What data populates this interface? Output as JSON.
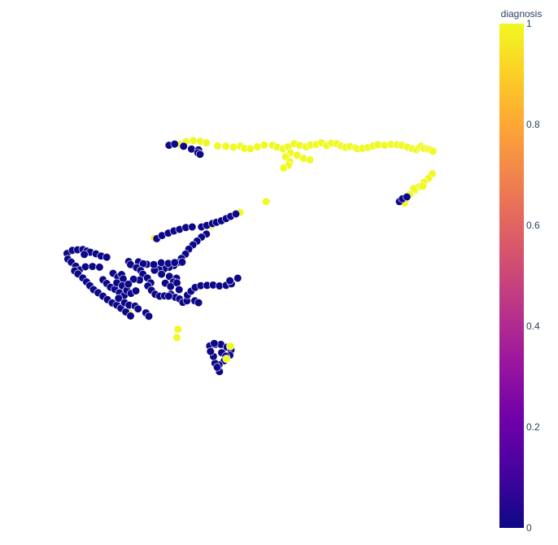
{
  "chart_data": {
    "type": "scatter",
    "title": "",
    "xlabel": "",
    "ylabel": "",
    "axes_visible": false,
    "grid": false,
    "xlim": [
      0,
      100
    ],
    "ylim": [
      0,
      100
    ],
    "color_by": "diagnosis",
    "colorbar": {
      "title": "diagnosis",
      "range": [
        0,
        1
      ],
      "tick_labels": [
        "0",
        "0.2",
        "0.4",
        "0.6",
        "0.8",
        "1"
      ],
      "tick_values": [
        0,
        0.2,
        0.4,
        0.6,
        0.8,
        1
      ],
      "colorscale": [
        "#0d0887",
        "#46039f",
        "#7201a8",
        "#9c179e",
        "#bd3786",
        "#d8576b",
        "#ed7953",
        "#fb9f3a",
        "#fdca26",
        "#f0f921"
      ]
    },
    "point_color_0": "#0d0887",
    "point_color_1": "#f0f921",
    "marker_outline": "#ffffff",
    "clusters": [
      {
        "diagnosis": 1,
        "points": [
          [
            31.4,
            87.5
          ],
          [
            33.1,
            88.4
          ],
          [
            35.0,
            88.7
          ],
          [
            36.9,
            88.5
          ],
          [
            38.5,
            88.0
          ],
          [
            41.5,
            87.0
          ],
          [
            43.7,
            86.9
          ],
          [
            45.8,
            86.6
          ],
          [
            47.6,
            86.9
          ],
          [
            48.7,
            86.2
          ],
          [
            50.3,
            86.1
          ],
          [
            52.2,
            86.7
          ],
          [
            54.0,
            87.3
          ],
          [
            56.2,
            87.2
          ],
          [
            57.5,
            86.6
          ],
          [
            59.0,
            86.1
          ],
          [
            60.3,
            86.7
          ],
          [
            62.0,
            87.7
          ],
          [
            63.5,
            87.2
          ],
          [
            65.2,
            86.7
          ],
          [
            66.4,
            87.3
          ],
          [
            67.9,
            87.5
          ],
          [
            69.3,
            88.0
          ],
          [
            70.7,
            87.1
          ],
          [
            72.0,
            87.9
          ],
          [
            73.4,
            87.7
          ],
          [
            74.6,
            87.0
          ],
          [
            75.8,
            86.6
          ],
          [
            77.0,
            86.8
          ],
          [
            78.4,
            86.4
          ],
          [
            79.0,
            86.1
          ],
          [
            80.3,
            86.2
          ],
          [
            81.8,
            86.5
          ],
          [
            83.2,
            87.0
          ],
          [
            84.4,
            87.4
          ],
          [
            86.2,
            87.2
          ],
          [
            88.0,
            87.5
          ],
          [
            89.6,
            87.4
          ],
          [
            90.8,
            87.2
          ],
          [
            92.4,
            86.6
          ],
          [
            93.7,
            86.1
          ],
          [
            94.7,
            85.8
          ],
          [
            95.5,
            86.5
          ],
          [
            96.0,
            86.9
          ],
          [
            96.8,
            86.2
          ],
          [
            97.8,
            86.0
          ],
          [
            98.5,
            85.7
          ],
          [
            99.2,
            85.3
          ],
          [
            61.0,
            84.8
          ],
          [
            59.7,
            83.5
          ],
          [
            62.8,
            84.0
          ],
          [
            64.5,
            83.0
          ],
          [
            66.2,
            82.5
          ],
          [
            60.8,
            81.9
          ],
          [
            60.5,
            80.7
          ],
          [
            59.2,
            79.9
          ]
        ]
      },
      {
        "diagnosis": 1,
        "points": [
          [
            99.0,
            78.0
          ],
          [
            98.0,
            76.5
          ],
          [
            96.8,
            75.2
          ],
          [
            95.5,
            73.8
          ],
          [
            94.3,
            72.6
          ],
          [
            93.0,
            71.3
          ],
          [
            92.0,
            69.8
          ],
          [
            96.5,
            74.0
          ],
          [
            94.0,
            73.2
          ],
          [
            91.6,
            68.5
          ]
        ]
      },
      {
        "diagnosis": 1,
        "points": [
          [
            54.5,
            69.0
          ],
          [
            47.5,
            65.5
          ],
          [
            39.8,
            61.2
          ],
          [
            24.6,
            57.2
          ],
          [
            17.7,
            33.2
          ],
          [
            30.9,
            27.7
          ],
          [
            30.6,
            25.0
          ]
        ]
      },
      {
        "diagnosis": 0,
        "points": [
          [
            90.2,
            69.0
          ],
          [
            91.0,
            69.9
          ],
          [
            92.2,
            70.5
          ],
          [
            28.5,
            87.2
          ],
          [
            30.0,
            87.6
          ],
          [
            32.4,
            86.9
          ],
          [
            34.5,
            86.0
          ],
          [
            36.4,
            85.7
          ],
          [
            36.2,
            84.8
          ],
          [
            36.8,
            84.3
          ]
        ]
      },
      {
        "diagnosis": 0,
        "points": [
          [
            25.2,
            57.0
          ],
          [
            26.6,
            58.0
          ],
          [
            28.3,
            58.8
          ],
          [
            29.8,
            59.5
          ],
          [
            31.3,
            60.0
          ],
          [
            33.0,
            60.6
          ],
          [
            34.7,
            60.8
          ],
          [
            37.2,
            60.8
          ],
          [
            38.6,
            61.3
          ],
          [
            40.1,
            61.9
          ],
          [
            41.2,
            62.3
          ],
          [
            42.5,
            62.8
          ],
          [
            43.8,
            63.5
          ],
          [
            45.0,
            64.2
          ],
          [
            46.4,
            65.0
          ],
          [
            38.5,
            58.5
          ],
          [
            37.2,
            57.5
          ],
          [
            36.0,
            56.2
          ],
          [
            34.9,
            55.0
          ],
          [
            33.8,
            53.6
          ],
          [
            32.9,
            52.0
          ],
          [
            31.8,
            50.6
          ],
          [
            30.9,
            49.3
          ],
          [
            29.8,
            48.3
          ],
          [
            28.5,
            47.7
          ],
          [
            27.2,
            47.2
          ],
          [
            25.8,
            47.0
          ],
          [
            24.6,
            46.8
          ],
          [
            26.5,
            45.5
          ],
          [
            28.6,
            44.8
          ],
          [
            30.5,
            44.2
          ],
          [
            29.7,
            43.0
          ],
          [
            27.5,
            42.6
          ],
          [
            28.9,
            41.5
          ],
          [
            30.6,
            42.7
          ],
          [
            31.2,
            40.5
          ]
        ]
      },
      {
        "diagnosis": 0,
        "points": [
          [
            1.2,
            52.2
          ],
          [
            2.6,
            53.2
          ],
          [
            4.0,
            53.4
          ],
          [
            5.4,
            53.5
          ],
          [
            6.5,
            53.0
          ],
          [
            7.4,
            52.6
          ],
          [
            8.9,
            52.1
          ],
          [
            10.3,
            51.4
          ],
          [
            11.8,
            51.0
          ],
          [
            5.8,
            51.9
          ],
          [
            1.4,
            50.4
          ],
          [
            2.3,
            49.4
          ],
          [
            3.5,
            48.1
          ],
          [
            4.5,
            46.9
          ],
          [
            6.1,
            47.9
          ],
          [
            8.0,
            48.0
          ],
          [
            9.9,
            47.8
          ],
          [
            3.2,
            46.6
          ],
          [
            4.1,
            45.6
          ],
          [
            5.4,
            44.3
          ],
          [
            6.4,
            43.0
          ],
          [
            7.3,
            41.8
          ],
          [
            8.3,
            40.5
          ],
          [
            9.5,
            39.5
          ],
          [
            10.8,
            38.4
          ],
          [
            12.0,
            37.3
          ],
          [
            13.3,
            36.2
          ],
          [
            14.5,
            35.5
          ],
          [
            15.6,
            34.5
          ],
          [
            16.9,
            33.3
          ],
          [
            18.2,
            32.0
          ],
          [
            13.5,
            45.8
          ],
          [
            14.8,
            44.6
          ],
          [
            15.8,
            45.4
          ],
          [
            16.2,
            44.0
          ],
          [
            10.8,
            43.7
          ],
          [
            11.8,
            42.5
          ],
          [
            12.8,
            41.3
          ],
          [
            14.0,
            40.6
          ],
          [
            15.2,
            39.5
          ],
          [
            16.5,
            38.6
          ],
          [
            14.5,
            42.7
          ],
          [
            16.0,
            41.8
          ],
          [
            17.2,
            40.3
          ],
          [
            18.3,
            39.3
          ],
          [
            19.6,
            40.1
          ],
          [
            15.0,
            37.7
          ],
          [
            16.6,
            36.3
          ],
          [
            17.8,
            35.5
          ],
          [
            19.4,
            35.2
          ],
          [
            20.2,
            34.3
          ],
          [
            22.3,
            33.0
          ],
          [
            23.1,
            31.9
          ],
          [
            22.6,
            48.7
          ],
          [
            24.4,
            48.6
          ],
          [
            26.4,
            49.2
          ],
          [
            28.3,
            49.0
          ],
          [
            30.0,
            49.3
          ],
          [
            32.0,
            49.4
          ],
          [
            20.3,
            49.5
          ],
          [
            21.6,
            48.9
          ],
          [
            17.7,
            49.6
          ],
          [
            18.2,
            48.6
          ],
          [
            19.8,
            47.6
          ],
          [
            20.9,
            46.7
          ],
          [
            21.5,
            45.5
          ],
          [
            22.7,
            44.3
          ],
          [
            23.6,
            42.7
          ],
          [
            20.6,
            43.6
          ],
          [
            19.0,
            43.9
          ],
          [
            17.6,
            42.3
          ]
        ]
      },
      {
        "diagnosis": 0,
        "points": [
          [
            22.8,
            41.7
          ],
          [
            23.8,
            40.3
          ],
          [
            24.8,
            39.0
          ],
          [
            26.0,
            38.4
          ],
          [
            27.3,
            38.5
          ],
          [
            29.0,
            39.0
          ],
          [
            30.2,
            38.0
          ],
          [
            31.3,
            37.5
          ],
          [
            32.2,
            36.4
          ],
          [
            33.3,
            36.9
          ],
          [
            35.4,
            36.9
          ],
          [
            36.4,
            36.3
          ],
          [
            33.4,
            38.7
          ],
          [
            34.4,
            40.0
          ],
          [
            35.5,
            41.2
          ],
          [
            37.0,
            41.8
          ],
          [
            38.7,
            41.9
          ],
          [
            40.3,
            42.0
          ],
          [
            42.0,
            41.7
          ],
          [
            43.8,
            41.9
          ],
          [
            45.2,
            42.4
          ],
          [
            46.9,
            44.2
          ],
          [
            44.8,
            43.4
          ],
          [
            28.4,
            38.4
          ]
        ]
      },
      {
        "diagnosis": 0,
        "points": [
          [
            39.4,
            22.3
          ],
          [
            40.9,
            22.8
          ],
          [
            42.4,
            22.8
          ],
          [
            44.0,
            21.9
          ],
          [
            45.1,
            21.0
          ],
          [
            44.8,
            19.3
          ],
          [
            43.3,
            17.5
          ],
          [
            41.9,
            16.2
          ],
          [
            40.8,
            16.7
          ],
          [
            42.0,
            14.0
          ],
          [
            41.4,
            15.4
          ],
          [
            40.4,
            18.9
          ],
          [
            39.6,
            20.5
          ],
          [
            42.6,
            20.1
          ],
          [
            43.7,
            19.0
          ],
          [
            40.6,
            23.1
          ]
        ]
      },
      {
        "diagnosis": 1,
        "points": [
          [
            44.9,
            22.2
          ],
          [
            43.9,
            18.1
          ]
        ]
      }
    ]
  }
}
